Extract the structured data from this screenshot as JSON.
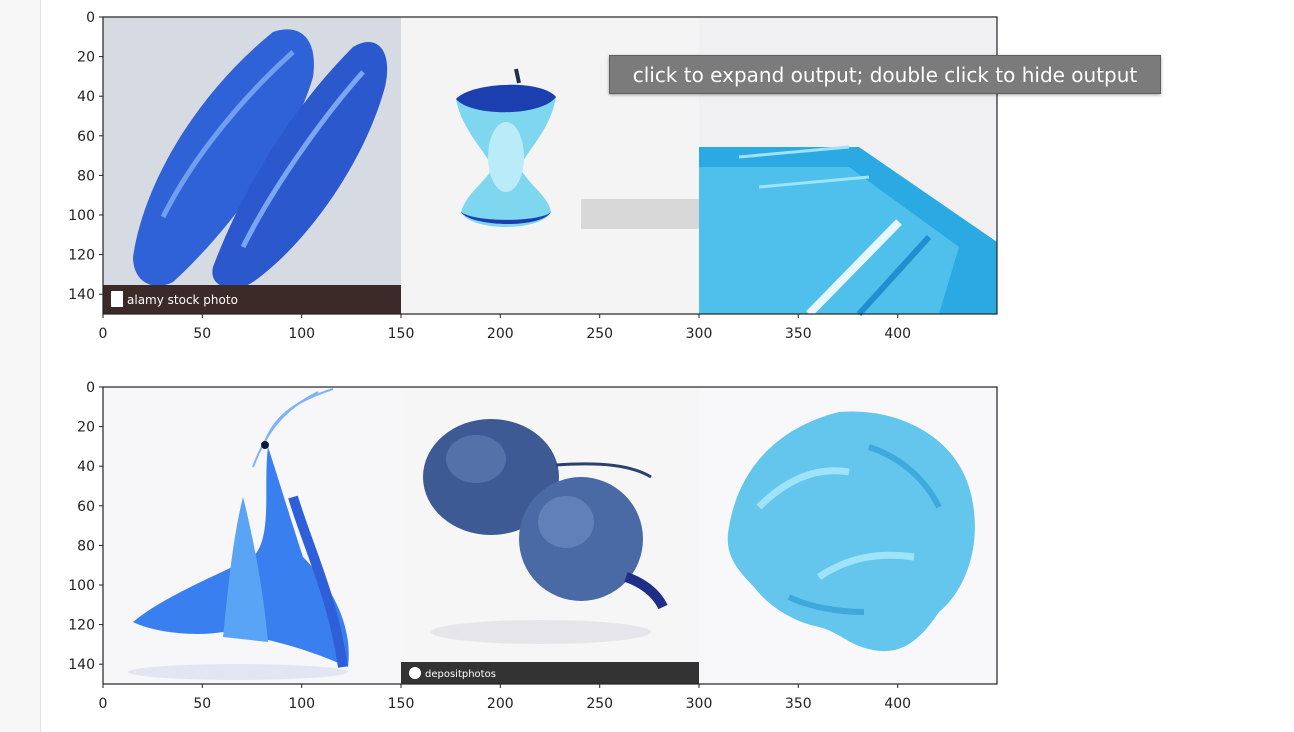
{
  "tooltip": {
    "text": "click to expand output; double click to hide output"
  },
  "plots": [
    {
      "name": "top",
      "ylim": [
        0,
        150
      ],
      "xlim": [
        0,
        450
      ],
      "yticks": [
        "0",
        "20",
        "40",
        "60",
        "80",
        "100",
        "120",
        "140"
      ],
      "xticks": [
        "0",
        "50",
        "100",
        "150",
        "200",
        "250",
        "300",
        "350",
        "400"
      ],
      "images": [
        {
          "subject": "fish-fillets",
          "watermark": "alamy stock photo"
        },
        {
          "subject": "apple-core",
          "watermark": ""
        },
        {
          "subject": "pasta-spaghetti",
          "watermark": ""
        }
      ]
    },
    {
      "name": "bottom",
      "ylim": [
        0,
        150
      ],
      "xlim": [
        0,
        450
      ],
      "yticks": [
        "0",
        "20",
        "40",
        "60",
        "80",
        "100",
        "120",
        "140"
      ],
      "xticks": [
        "0",
        "50",
        "100",
        "150",
        "200",
        "250",
        "300",
        "350",
        "400"
      ],
      "images": [
        {
          "subject": "shrimp",
          "watermark": ""
        },
        {
          "subject": "blue-beets",
          "watermark": "depositphotos"
        },
        {
          "subject": "fusilli-pasta",
          "watermark": ""
        }
      ]
    }
  ],
  "colors": {
    "fish": "#2d5ed6",
    "apple": "#6fd0ea",
    "pasta": "#2aa9e3",
    "shrimp": "#3a7ff0",
    "beet": "#3e5a94",
    "fusilli": "#64c6ec"
  }
}
